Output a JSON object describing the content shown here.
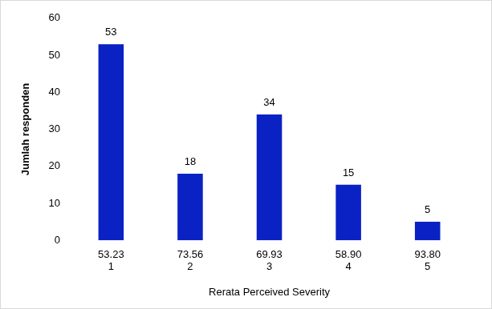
{
  "chart_data": {
    "type": "bar",
    "x_label": "Rerata Perceived Severity",
    "y_label": "Jumlah responden",
    "categories": [
      [
        "53.23",
        "1"
      ],
      [
        "73.56",
        "2"
      ],
      [
        "69.93",
        "3"
      ],
      [
        "58.90",
        "4"
      ],
      [
        "93.80",
        "5"
      ]
    ],
    "values": [
      53,
      18,
      34,
      15,
      5
    ],
    "color": "#0a22c4",
    "ylim": [
      0,
      60
    ],
    "yticks": [
      0,
      10,
      20,
      30,
      40,
      50,
      60
    ],
    "grid": false,
    "data_labels": true
  }
}
